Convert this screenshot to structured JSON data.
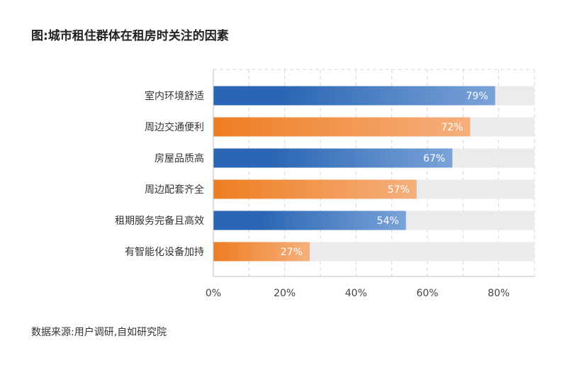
{
  "chart_data": {
    "type": "bar",
    "orientation": "horizontal",
    "title": "图:城市租住群体在租房时关注的因素",
    "categories": [
      "室内环境舒适",
      "周边交通便利",
      "房屋品质高",
      "周边配套齐全",
      "租期服务完备且高效",
      "有智能化设备加持"
    ],
    "values": [
      79,
      72,
      67,
      57,
      54,
      27
    ],
    "data_labels": [
      "79%",
      "72%",
      "67%",
      "57%",
      "54%",
      "27%"
    ],
    "xlim": [
      0,
      90
    ],
    "x_ticks": [
      0,
      20,
      40,
      60,
      80
    ],
    "x_tick_labels": [
      "0%",
      "20%",
      "40%",
      "60%",
      "80%"
    ],
    "grid": "dashed vertical every 10%",
    "colors": {
      "blue": "#2b66b4",
      "blue_light": "#7aa3d8",
      "orange": "#ee7d22",
      "orange_light": "#f5b07e",
      "track": "#ebebed"
    },
    "source": "数据来源:用户调研,自如研究院"
  }
}
